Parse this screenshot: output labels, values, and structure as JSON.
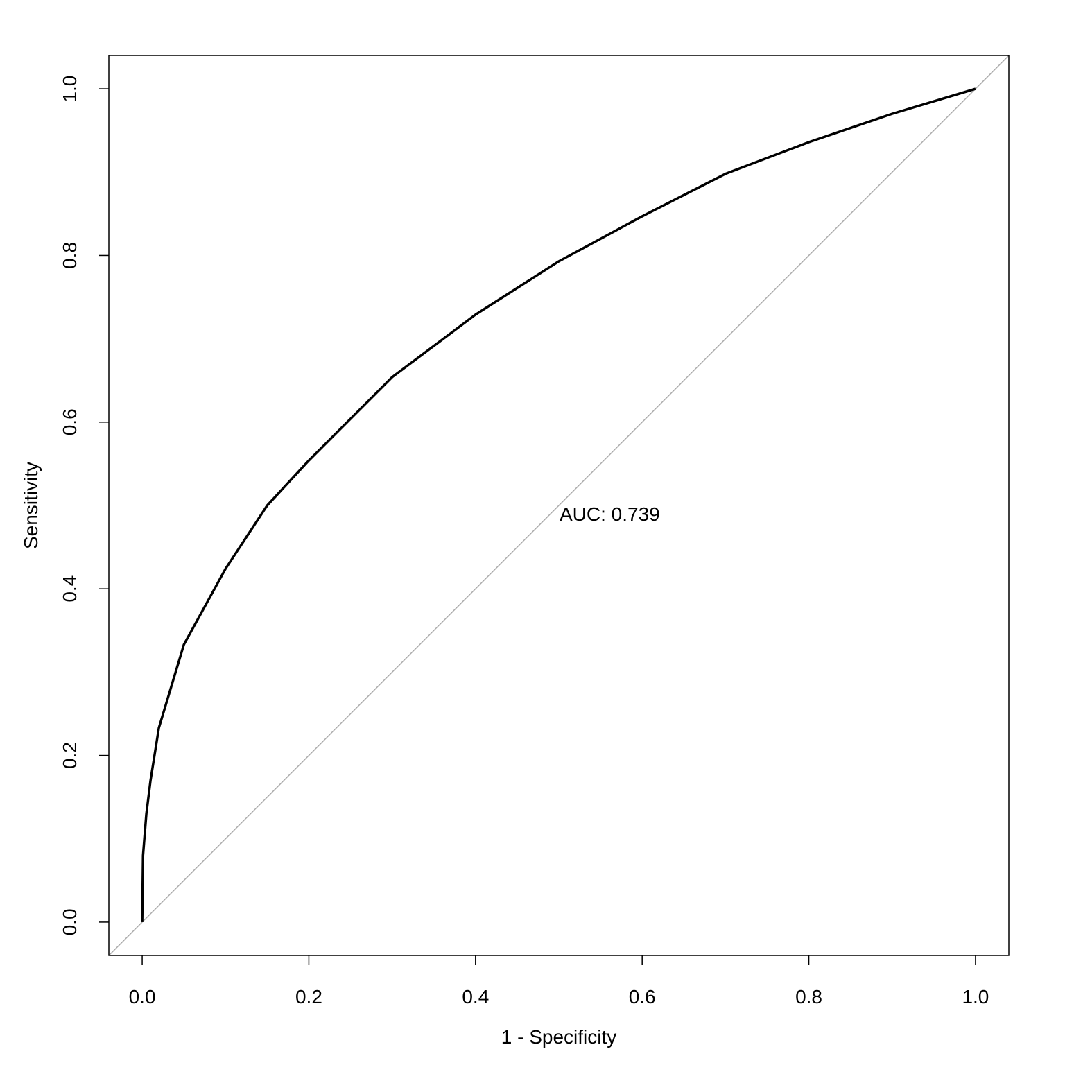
{
  "chart_data": {
    "type": "line",
    "x": [
      0,
      0.001,
      0.005,
      0.01,
      0.02,
      0.05,
      0.1,
      0.15,
      0.2,
      0.3,
      0.4,
      0.5,
      0.6,
      0.7,
      0.8,
      0.9,
      1
    ],
    "values": [
      0,
      0.08,
      0.13,
      0.17,
      0.233,
      0.333,
      0.424,
      0.5,
      0.554,
      0.654,
      0.729,
      0.793,
      0.847,
      0.898,
      0.936,
      0.97,
      1
    ],
    "color": "#000000",
    "x_label": "1 - Specificity",
    "y_label": "Sensitivity",
    "annotation": "AUC: 0.739",
    "xlim": [
      -0.04,
      1.04
    ],
    "ylim": [
      -0.04,
      1.04
    ],
    "xticks": [
      {
        "value": 0,
        "label": "0.0"
      },
      0.2,
      0.4,
      0.6,
      0.8,
      {
        "value": 1,
        "label": "1.0"
      }
    ],
    "yticks": [
      {
        "value": 0,
        "label": "0.0"
      },
      0.2,
      0.4,
      0.6,
      0.8,
      {
        "value": 1,
        "label": "1.0"
      }
    ],
    "grid": false
  }
}
